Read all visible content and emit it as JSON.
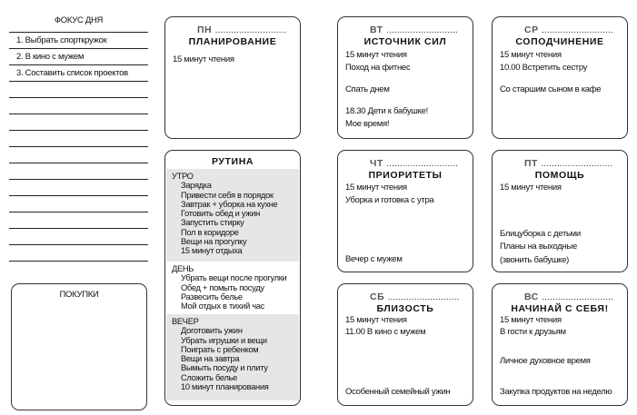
{
  "focus": {
    "title": "ФОКУС ДНЯ",
    "items": [
      "1. Выбрать спорткружок",
      "2. В кино с мужем",
      "3. Составить список проектов"
    ]
  },
  "shopping": {
    "title": "ПОКУПКИ"
  },
  "dots": "...........................",
  "days": {
    "mon": {
      "day": "ПН",
      "theme": "ПЛАНИРОВАНИЕ",
      "items": [
        "15 минут чтения"
      ]
    },
    "tue": {
      "day": "ВТ",
      "theme": "ИСТОЧНИК СИЛ",
      "items": [
        "15 минут чтения",
        "Поход на фитнес",
        "Спать днем",
        "18.30 Дети к бабушке!",
        "Мое время!"
      ]
    },
    "wed": {
      "day": "СР",
      "theme": "СОПОДЧИНЕНИЕ",
      "items": [
        "15 минут чтения",
        "10.00 Встретить сестру",
        "Со старшим сыном в кафе"
      ]
    },
    "thu": {
      "day": "ЧТ",
      "theme": "ПРИОРИТЕТЫ",
      "items": [
        "15 минут чтения",
        "Уборка и готовка с утра",
        "Вечер с мужем"
      ]
    },
    "fri": {
      "day": "ПТ",
      "theme": "ПОМОЩЬ",
      "items": [
        "15 минут чтения",
        "Блицуборка с детьми",
        "Планы на выходные",
        "(звонить бабушке)"
      ]
    },
    "sat": {
      "day": "СБ",
      "theme": "БЛИЗОСТЬ",
      "items": [
        "15 минут чтения",
        "11.00 В кино с мужем",
        "Особенный семейный ужин"
      ]
    },
    "sun": {
      "day": "ВС",
      "theme": "НАЧИНАЙ С СЕБЯ!",
      "items": [
        "15 минут чтения",
        "В гости к друзьям",
        "Личное духовное время",
        "Закупка продуктов на неделю"
      ]
    }
  },
  "routine": {
    "title": "РУТИНА",
    "sections": [
      {
        "label": "УТРО",
        "items": [
          "Зарядка",
          "Привести себя в порядок",
          "Завтрак + уборка на кухне",
          "Готовить обед и ужин",
          "Запустить стирку",
          "Пол в коридоре",
          "Вещи на прогулку",
          "15 минут отдыха"
        ]
      },
      {
        "label": "ДЕНЬ",
        "items": [
          "Убрать вещи после прогулки",
          "Обед + помыть посуду",
          "Развесить белье",
          "Мой отдых в тихий час"
        ]
      },
      {
        "label": "ВЕЧЕР",
        "items": [
          "Доготовить ужин",
          "Убрать игрушки и вещи",
          "Поиграть с ребенком",
          "Вещи на завтра",
          "Вымыть посуду и плиту",
          "Сложить белье",
          "10 минут планирования"
        ]
      }
    ]
  }
}
